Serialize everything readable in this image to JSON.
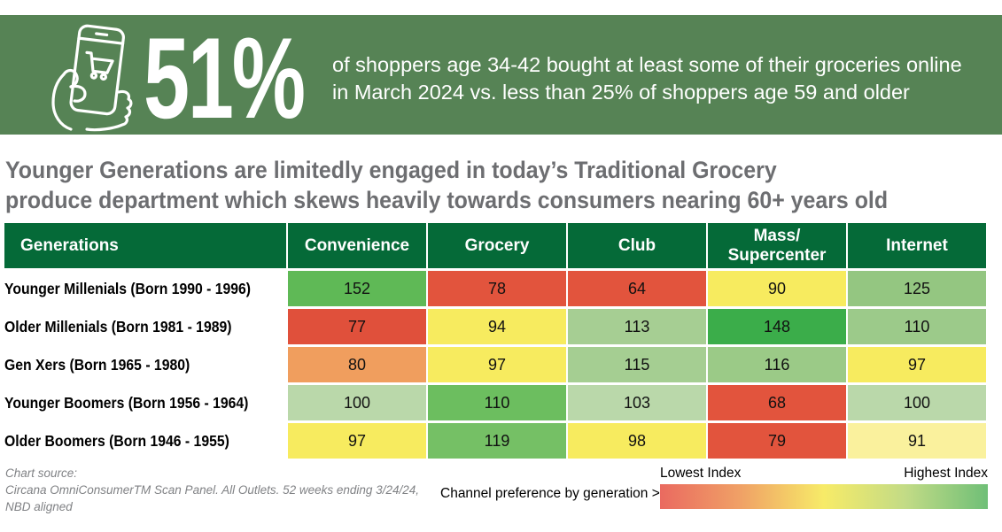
{
  "banner": {
    "bg_color": "#568355",
    "icon": "phone-shopping-cart-icon",
    "stat": "51%",
    "description_line1": "of shoppers age 34-42 bought at least some of their groceries online",
    "description_line2": "in March 2024 vs. less than 25% of shoppers age 59 and older"
  },
  "headline": {
    "color": "#6d6e71",
    "line1": "Younger Generations are limitedly engaged in today’s Traditional Grocery",
    "line2": "produce department which skews heavily towards consumers nearing 60+ years old"
  },
  "chart_data": {
    "type": "heatmap",
    "title": "Younger Generations are limitedly engaged in today’s Traditional Grocery produce department which skews heavily towards consumers nearing 60+ years old",
    "row_header": "Generations",
    "header_bg": "#056a38",
    "columns": [
      "Convenience",
      "Grocery",
      "Club",
      "Mass/\nSupercenter",
      "Internet"
    ],
    "rows": [
      {
        "label": "Younger Millenials (Born 1990 - 1996)",
        "values": [
          152,
          78,
          64,
          90,
          125
        ]
      },
      {
        "label": "Older Millenials (Born 1981 - 1989)",
        "values": [
          77,
          94,
          113,
          148,
          110
        ]
      },
      {
        "label": "Gen Xers (Born 1965 - 1980)",
        "values": [
          80,
          97,
          115,
          116,
          97
        ]
      },
      {
        "label": "Younger Boomers (Born 1956 - 1964)",
        "values": [
          100,
          110,
          103,
          68,
          100
        ]
      },
      {
        "label": "Older Boomers (Born 1946 - 1955)",
        "values": [
          97,
          119,
          98,
          79,
          91
        ]
      }
    ],
    "cell_colors": [
      [
        "#5fb956",
        "#e2543d",
        "#e2543d",
        "#f7eb5f",
        "#94c681"
      ],
      [
        "#e0503b",
        "#f7eb5f",
        "#a6ce93",
        "#3bad4a",
        "#9cca8a"
      ],
      [
        "#f09e5e",
        "#f7eb5f",
        "#a5ce92",
        "#9bca87",
        "#f7eb5f"
      ],
      [
        "#bad8aa",
        "#6cbe5f",
        "#bad8aa",
        "#e2543d",
        "#bad8aa"
      ],
      [
        "#f7eb5f",
        "#75c065",
        "#f7eb5f",
        "#e2543d",
        "#faf19d"
      ]
    ],
    "legend": {
      "low_label": "Lowest Index",
      "high_label": "Highest Index",
      "gradient": [
        "#ea6a60",
        "#f0a266",
        "#f7eb68",
        "#c2db86",
        "#6fbf77"
      ],
      "position": "bottom-right"
    }
  },
  "footer": {
    "source_line1": "Chart source:",
    "source_line2": "Circana OmniConsumerTM Scan Panel. All Outlets. 52 weeks ending 3/24/24,",
    "source_line3": "NBD aligned",
    "channel_label": "Channel preference by generation >"
  }
}
